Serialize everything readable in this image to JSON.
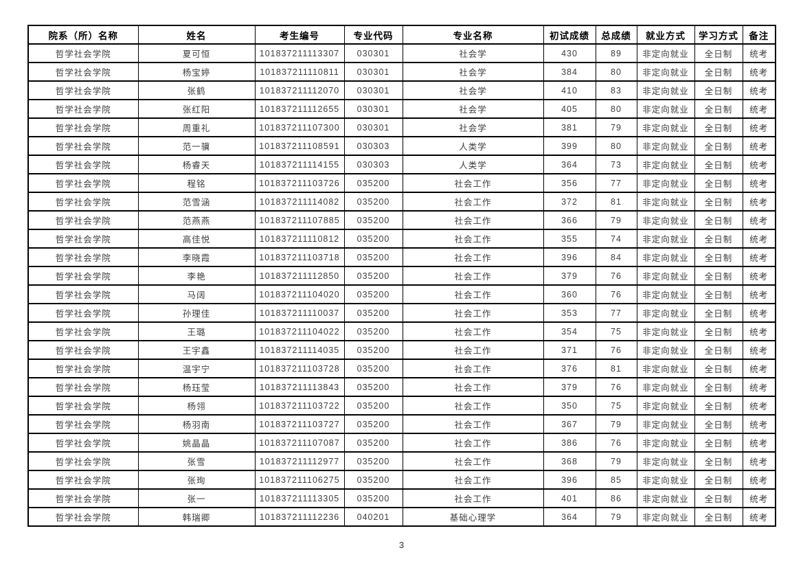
{
  "page": {
    "number": "3"
  },
  "table": {
    "headers": [
      "院系（所）名称",
      "姓名",
      "考生编号",
      "专业代码",
      "专业名称",
      "初试成绩",
      "总成绩",
      "就业方式",
      "学习方式",
      "备注"
    ],
    "rows": [
      [
        "哲学社会学院",
        "夏可恒",
        "101837211113307",
        "030301",
        "社会学",
        "430",
        "89",
        "非定向就业",
        "全日制",
        "统考"
      ],
      [
        "哲学社会学院",
        "杨宝婷",
        "101837211110811",
        "030301",
        "社会学",
        "384",
        "80",
        "非定向就业",
        "全日制",
        "统考"
      ],
      [
        "哲学社会学院",
        "张鹤",
        "101837211112070",
        "030301",
        "社会学",
        "410",
        "83",
        "非定向就业",
        "全日制",
        "统考"
      ],
      [
        "哲学社会学院",
        "张红阳",
        "101837211112655",
        "030301",
        "社会学",
        "405",
        "80",
        "非定向就业",
        "全日制",
        "统考"
      ],
      [
        "哲学社会学院",
        "周重礼",
        "101837211107300",
        "030301",
        "社会学",
        "381",
        "79",
        "非定向就业",
        "全日制",
        "统考"
      ],
      [
        "哲学社会学院",
        "范一骥",
        "101837211108591",
        "030303",
        "人类学",
        "399",
        "80",
        "非定向就业",
        "全日制",
        "统考"
      ],
      [
        "哲学社会学院",
        "杨睿天",
        "101837211114155",
        "030303",
        "人类学",
        "364",
        "73",
        "非定向就业",
        "全日制",
        "统考"
      ],
      [
        "哲学社会学院",
        "程铭",
        "101837211103726",
        "035200",
        "社会工作",
        "356",
        "77",
        "非定向就业",
        "全日制",
        "统考"
      ],
      [
        "哲学社会学院",
        "范雪涵",
        "101837211114082",
        "035200",
        "社会工作",
        "372",
        "81",
        "非定向就业",
        "全日制",
        "统考"
      ],
      [
        "哲学社会学院",
        "范燕燕",
        "101837211107885",
        "035200",
        "社会工作",
        "366",
        "79",
        "非定向就业",
        "全日制",
        "统考"
      ],
      [
        "哲学社会学院",
        "高佳悦",
        "101837211110812",
        "035200",
        "社会工作",
        "355",
        "74",
        "非定向就业",
        "全日制",
        "统考"
      ],
      [
        "哲学社会学院",
        "李晓霞",
        "101837211103718",
        "035200",
        "社会工作",
        "396",
        "84",
        "非定向就业",
        "全日制",
        "统考"
      ],
      [
        "哲学社会学院",
        "李艳",
        "101837211112850",
        "035200",
        "社会工作",
        "379",
        "76",
        "非定向就业",
        "全日制",
        "统考"
      ],
      [
        "哲学社会学院",
        "马阔",
        "101837211104020",
        "035200",
        "社会工作",
        "360",
        "76",
        "非定向就业",
        "全日制",
        "统考"
      ],
      [
        "哲学社会学院",
        "孙理佳",
        "101837211110037",
        "035200",
        "社会工作",
        "353",
        "77",
        "非定向就业",
        "全日制",
        "统考"
      ],
      [
        "哲学社会学院",
        "王璐",
        "101837211104022",
        "035200",
        "社会工作",
        "354",
        "75",
        "非定向就业",
        "全日制",
        "统考"
      ],
      [
        "哲学社会学院",
        "王宇鑫",
        "101837211114035",
        "035200",
        "社会工作",
        "371",
        "76",
        "非定向就业",
        "全日制",
        "统考"
      ],
      [
        "哲学社会学院",
        "温宇宁",
        "101837211103728",
        "035200",
        "社会工作",
        "376",
        "81",
        "非定向就业",
        "全日制",
        "统考"
      ],
      [
        "哲学社会学院",
        "杨珏莹",
        "101837211113843",
        "035200",
        "社会工作",
        "379",
        "76",
        "非定向就业",
        "全日制",
        "统考"
      ],
      [
        "哲学社会学院",
        "杨翎",
        "101837211103722",
        "035200",
        "社会工作",
        "350",
        "75",
        "非定向就业",
        "全日制",
        "统考"
      ],
      [
        "哲学社会学院",
        "杨羽南",
        "101837211103727",
        "035200",
        "社会工作",
        "367",
        "79",
        "非定向就业",
        "全日制",
        "统考"
      ],
      [
        "哲学社会学院",
        "姚晶晶",
        "101837211107087",
        "035200",
        "社会工作",
        "386",
        "76",
        "非定向就业",
        "全日制",
        "统考"
      ],
      [
        "哲学社会学院",
        "张雪",
        "101837211112977",
        "035200",
        "社会工作",
        "368",
        "79",
        "非定向就业",
        "全日制",
        "统考"
      ],
      [
        "哲学社会学院",
        "张珣",
        "101837211106275",
        "035200",
        "社会工作",
        "396",
        "85",
        "非定向就业",
        "全日制",
        "统考"
      ],
      [
        "哲学社会学院",
        "张一",
        "101837211113305",
        "035200",
        "社会工作",
        "401",
        "86",
        "非定向就业",
        "全日制",
        "统考"
      ],
      [
        "哲学社会学院",
        "韩瑞卿",
        "101837211112236",
        "040201",
        "基础心理学",
        "364",
        "79",
        "非定向就业",
        "全日制",
        "统考"
      ]
    ]
  }
}
